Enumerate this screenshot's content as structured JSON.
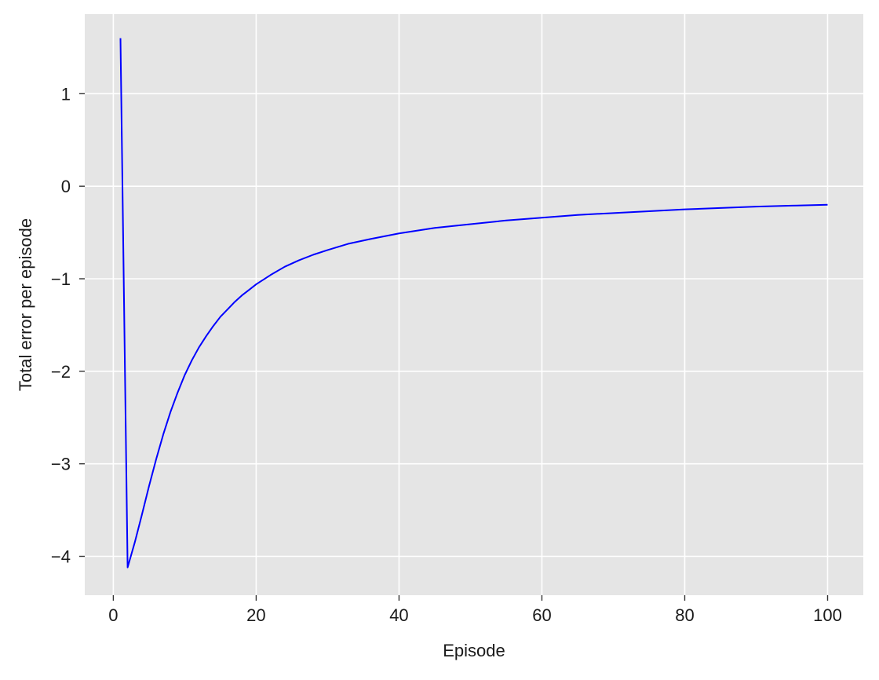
{
  "chart_data": {
    "type": "line",
    "title": "",
    "xlabel": "Episode",
    "ylabel": "Total error per episode",
    "xlim": [
      -4,
      105
    ],
    "ylim": [
      -4.42,
      1.86
    ],
    "xticks": [
      0,
      20,
      40,
      60,
      80,
      100
    ],
    "xtick_labels": [
      "0",
      "20",
      "40",
      "60",
      "80",
      "100"
    ],
    "yticks": [
      -4,
      -3,
      -2,
      -1,
      0,
      1
    ],
    "ytick_labels": [
      "−4",
      "−3",
      "−2",
      "−1",
      "0",
      "1"
    ],
    "grid": true,
    "legend": "none",
    "colors": {
      "background": "#e5e5e5",
      "grid": "#ffffff",
      "line": "#0000ff"
    },
    "series": [
      {
        "color": "#0000ff",
        "x": [
          1,
          2,
          3,
          4,
          5,
          6,
          7,
          8,
          9,
          10,
          11,
          12,
          13,
          14,
          15,
          16,
          17,
          18,
          19,
          20,
          22,
          24,
          26,
          28,
          30,
          33,
          36,
          40,
          45,
          50,
          55,
          60,
          65,
          70,
          75,
          80,
          85,
          90,
          95,
          100
        ],
        "y": [
          1.6,
          -4.12,
          -3.85,
          -3.55,
          -3.24,
          -2.95,
          -2.68,
          -2.44,
          -2.23,
          -2.04,
          -1.88,
          -1.74,
          -1.62,
          -1.51,
          -1.41,
          -1.33,
          -1.25,
          -1.18,
          -1.12,
          -1.06,
          -0.96,
          -0.87,
          -0.8,
          -0.74,
          -0.69,
          -0.62,
          -0.57,
          -0.51,
          -0.45,
          -0.41,
          -0.37,
          -0.34,
          -0.31,
          -0.29,
          -0.27,
          -0.25,
          -0.235,
          -0.22,
          -0.21,
          -0.2
        ]
      }
    ]
  }
}
